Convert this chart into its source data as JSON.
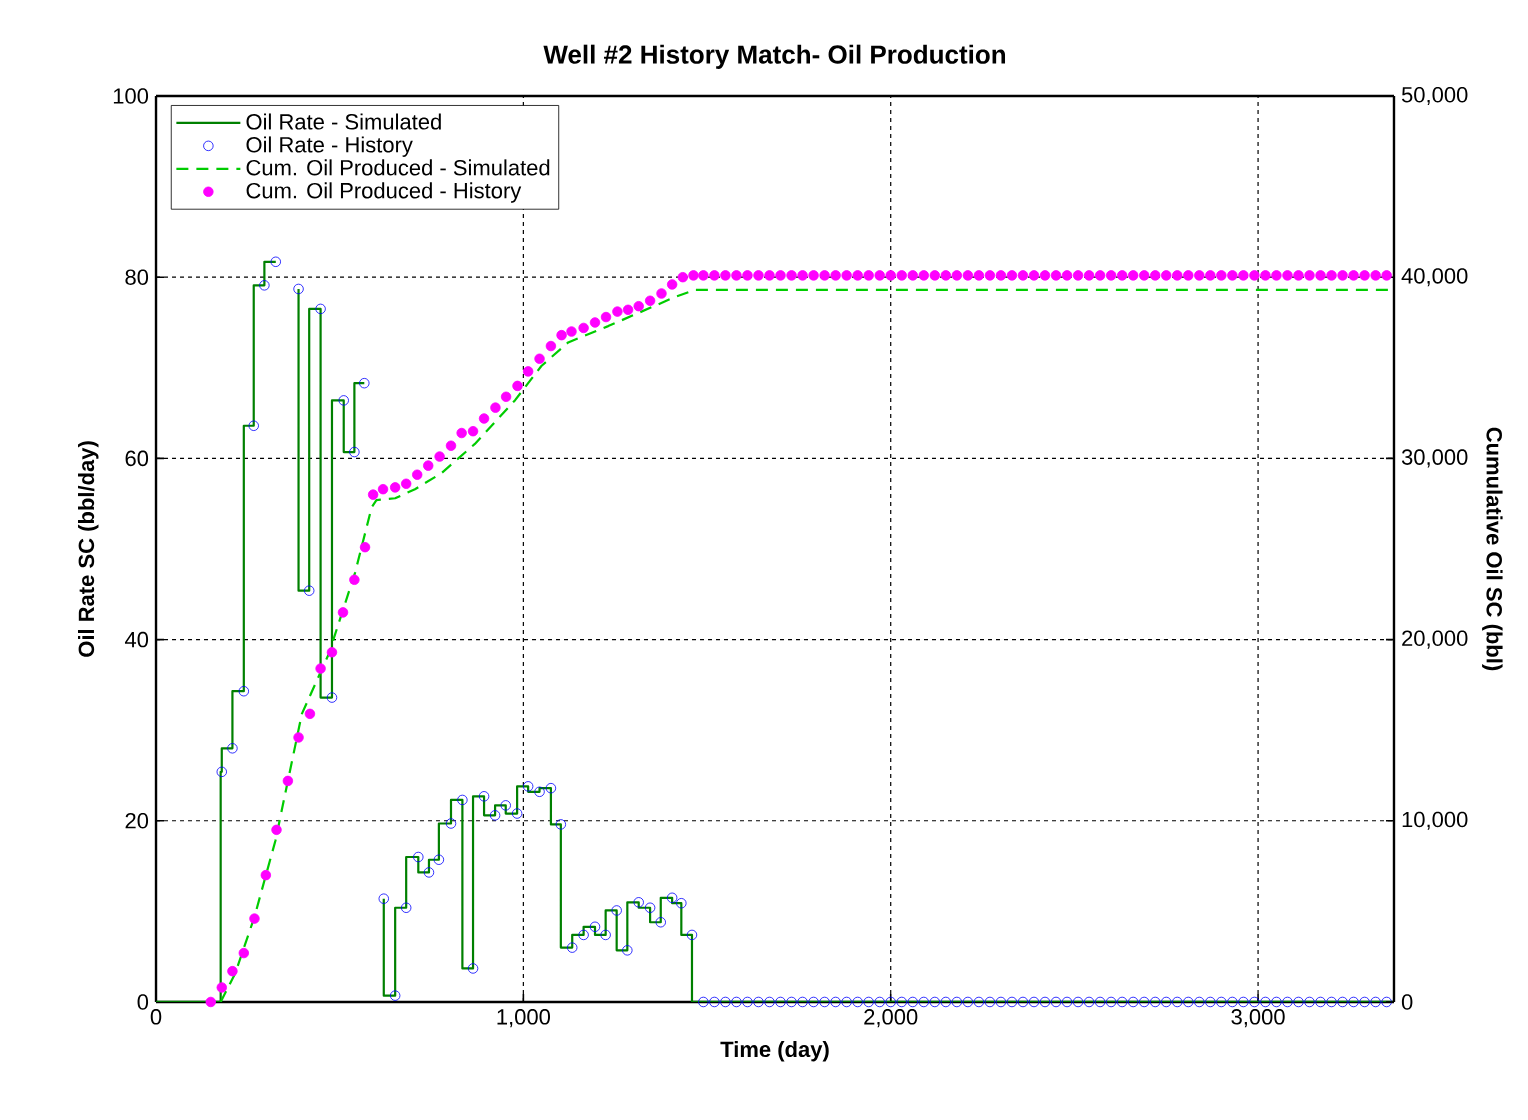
{
  "chart_data": {
    "type": "line",
    "title": "Well #2 History Match- Oil Production",
    "xlabel": "Time (day)",
    "ylabel": "Oil Rate SC (bbl/day)",
    "y2label": "Cumulative Oil SC (bbl)",
    "xlim": [
      0,
      3370
    ],
    "xticks": [
      0,
      {
        "value": 1000,
        "label": "1,000"
      },
      {
        "value": 2000,
        "label": "2,000"
      },
      {
        "value": 3000,
        "label": "3,000"
      }
    ],
    "ylim": [
      0,
      100
    ],
    "yticks": [
      0,
      20,
      40,
      60,
      80,
      100
    ],
    "y2lim": [
      0,
      50000
    ],
    "y2ticks": [
      0,
      {
        "value": 10000,
        "label": "10,000"
      },
      {
        "value": 20000,
        "label": "20,000"
      },
      {
        "value": 30000,
        "label": "30,000"
      },
      {
        "value": 40000,
        "label": "40,000"
      },
      {
        "value": 50000,
        "label": "50,000"
      }
    ],
    "grid": true,
    "legend": "top left",
    "series": [
      {
        "name": "Oil Rate - Simulated",
        "type": "step",
        "color": "#008000",
        "marker": "none",
        "line_style": "solid",
        "x": [
          0,
          176,
          179,
          208,
          239,
          266,
          295,
          326,
          357,
          388,
          417,
          448,
          479,
          511,
          540,
          567,
          590,
          620,
          651,
          681,
          714,
          743,
          770,
          803,
          834,
          863,
          893,
          923,
          952,
          983,
          1013,
          1044,
          1075,
          1102,
          1133,
          1164,
          1195,
          1224,
          1254,
          1283,
          1314,
          1345,
          1374,
          1405,
          1430,
          1459,
          1462,
          3370
        ],
        "values": [
          0,
          0,
          25.4,
          28.0,
          34.3,
          63.6,
          79.1,
          81.7,
          null,
          78.7,
          45.4,
          76.5,
          33.6,
          66.4,
          60.7,
          68.3,
          null,
          11.4,
          0.7,
          10.4,
          16.0,
          14.3,
          15.7,
          19.7,
          22.3,
          3.7,
          22.7,
          20.6,
          21.7,
          20.8,
          23.8,
          23.2,
          23.6,
          19.6,
          6.0,
          7.4,
          8.3,
          7.4,
          10.1,
          5.7,
          11.0,
          10.4,
          8.8,
          11.5,
          10.9,
          7.4,
          0,
          0
        ]
      },
      {
        "name": "Oil Rate - History",
        "type": "scatter",
        "color": "#0000ff",
        "marker": "open circle",
        "x": [
          179,
          208,
          239,
          266,
          295,
          326,
          388,
          417,
          448,
          479,
          511,
          540,
          567,
          620,
          651,
          681,
          714,
          743,
          770,
          803,
          834,
          863,
          893,
          923,
          952,
          983,
          1013,
          1044,
          1075,
          1102,
          1133,
          1164,
          1195,
          1224,
          1254,
          1283,
          1314,
          1345,
          1374,
          1405,
          1430,
          1459,
          1490,
          1520,
          1550,
          1580,
          1610,
          1640,
          1670,
          1700,
          1730,
          1760,
          1790,
          1820,
          1850,
          1880,
          1910,
          1940,
          1970,
          2000,
          2030,
          2060,
          2090,
          2120,
          2150,
          2180,
          2210,
          2240,
          2270,
          2300,
          2330,
          2360,
          2390,
          2420,
          2450,
          2480,
          2510,
          2540,
          2570,
          2600,
          2630,
          2660,
          2690,
          2720,
          2750,
          2780,
          2810,
          2840,
          2870,
          2900,
          2930,
          2960,
          2990,
          3020,
          3050,
          3080,
          3110,
          3140,
          3170,
          3200,
          3230,
          3260,
          3290,
          3320,
          3350
        ],
        "values": [
          25.4,
          28.0,
          34.3,
          63.6,
          79.1,
          81.7,
          78.7,
          45.4,
          76.5,
          33.6,
          66.4,
          60.7,
          68.3,
          11.4,
          0.7,
          10.4,
          16.0,
          14.3,
          15.7,
          19.7,
          22.3,
          3.7,
          22.7,
          20.6,
          21.7,
          20.8,
          23.8,
          23.2,
          23.6,
          19.6,
          6.0,
          7.4,
          8.3,
          7.4,
          10.1,
          5.7,
          11.0,
          10.4,
          8.8,
          11.5,
          10.9,
          7.4,
          0,
          0,
          0,
          0,
          0,
          0,
          0,
          0,
          0,
          0,
          0,
          0,
          0,
          0,
          0,
          0,
          0,
          0,
          0,
          0,
          0,
          0,
          0,
          0,
          0,
          0,
          0,
          0,
          0,
          0,
          0,
          0,
          0,
          0,
          0,
          0,
          0,
          0,
          0,
          0,
          0,
          0,
          0,
          0,
          0,
          0,
          0,
          0,
          0,
          0,
          0,
          0,
          0,
          0,
          0,
          0,
          0,
          0,
          0,
          0,
          0,
          0,
          0
        ]
      },
      {
        "name": "Cum. Oil Produced - Simulated",
        "axis": "y2",
        "color": "#00cc00",
        "marker": "none",
        "line_style": "dashed",
        "x": [
          176,
          216,
          268,
          325,
          397,
          470,
          542,
          587,
          600,
          651,
          705,
          778,
          868,
          977,
          1049,
          1122,
          1231,
          1412,
          1467,
          3370
        ],
        "values": [
          0,
          1600,
          4700,
          8900,
          15900,
          19200,
          23700,
          27300,
          27700,
          27800,
          28300,
          29200,
          30800,
          33200,
          35100,
          36400,
          37300,
          38900,
          39300,
          39300
        ]
      },
      {
        "name": "Cum. Oil Produced - History",
        "type": "scatter",
        "axis": "y2",
        "color": "#ff00ff",
        "marker": "circle",
        "x": [
          149,
          179,
          208,
          239,
          268,
          299,
          328,
          359,
          388,
          419,
          448,
          479,
          509,
          540,
          569,
          591,
          618,
          651,
          681,
          711,
          741,
          772,
          803,
          832,
          863,
          893,
          924,
          953,
          984,
          1013,
          1044,
          1075,
          1104,
          1131,
          1164,
          1195,
          1225,
          1256,
          1285,
          1314,
          1345,
          1376,
          1405,
          1434,
          1463,
          1490,
          1520,
          1550,
          1580,
          1610,
          1640,
          1670,
          1700,
          1730,
          1760,
          1790,
          1820,
          1850,
          1880,
          1910,
          1940,
          1970,
          2000,
          2030,
          2060,
          2090,
          2120,
          2150,
          2180,
          2210,
          2240,
          2270,
          2300,
          2330,
          2360,
          2390,
          2420,
          2450,
          2480,
          2510,
          2540,
          2570,
          2600,
          2630,
          2660,
          2690,
          2720,
          2750,
          2780,
          2810,
          2840,
          2870,
          2900,
          2930,
          2960,
          2990,
          3020,
          3050,
          3080,
          3110,
          3140,
          3170,
          3200,
          3230,
          3260,
          3290,
          3320,
          3350
        ],
        "values": [
          0,
          800,
          1700,
          2700,
          4600,
          7000,
          9500,
          12200,
          14600,
          15900,
          18400,
          19300,
          21500,
          23300,
          25100,
          28000,
          28300,
          28400,
          28600,
          29100,
          29600,
          30100,
          30700,
          31400,
          31500,
          32200,
          32800,
          33400,
          34000,
          34800,
          35500,
          36200,
          36800,
          37000,
          37200,
          37500,
          37800,
          38100,
          38200,
          38400,
          38700,
          39100,
          39600,
          40000,
          40100,
          40100,
          40100,
          40100,
          40100,
          40100,
          40100,
          40100,
          40100,
          40100,
          40100,
          40100,
          40100,
          40100,
          40100,
          40100,
          40100,
          40100,
          40100,
          40100,
          40100,
          40100,
          40100,
          40100,
          40100,
          40100,
          40100,
          40100,
          40100,
          40100,
          40100,
          40100,
          40100,
          40100,
          40100,
          40100,
          40100,
          40100,
          40100,
          40100,
          40100,
          40100,
          40100,
          40100,
          40100,
          40100,
          40100,
          40100,
          40100,
          40100,
          40100,
          40100,
          40100,
          40100,
          40100,
          40100,
          40100,
          40100,
          40100,
          40100,
          40100,
          40100,
          40100,
          40100
        ]
      }
    ]
  }
}
